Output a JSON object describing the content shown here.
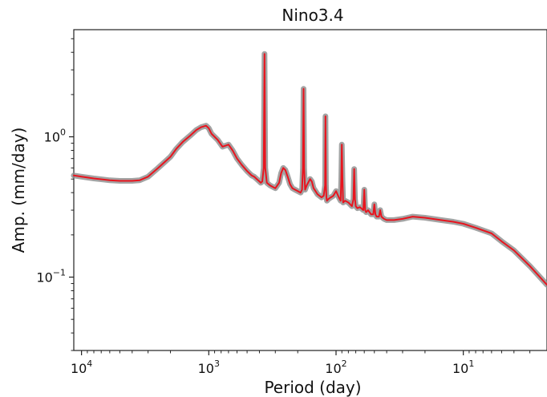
{
  "chart_data": {
    "type": "line",
    "title": "Nino3.4",
    "xlabel": "Period (day)",
    "ylabel": "Amp. (mm/day)",
    "x_scale": "log",
    "y_scale": "log",
    "x_reversed": true,
    "xlim": [
      11500,
      2.2
    ],
    "ylim": [
      0.03,
      5.8
    ],
    "grid": false,
    "legend": "none",
    "x_ticks": [
      {
        "value": 10000,
        "base": "10",
        "exp": "4"
      },
      {
        "value": 1000,
        "base": "10",
        "exp": "3"
      },
      {
        "value": 100,
        "base": "10",
        "exp": "2"
      },
      {
        "value": 10,
        "base": "10",
        "exp": "1"
      }
    ],
    "y_ticks": [
      {
        "value": 1.0,
        "base": "10",
        "exp": "0"
      },
      {
        "value": 0.1,
        "base": "10",
        "exp": "−1"
      }
    ],
    "series": [
      {
        "color": "#e8141e",
        "band_color": "#8c8c8c",
        "x": [
          11500,
          10000,
          8000,
          6000,
          5000,
          4000,
          3500,
          3000,
          2500,
          2000,
          1800,
          1600,
          1400,
          1250,
          1150,
          1050,
          1000,
          950,
          900,
          850,
          780,
          700,
          650,
          600,
          550,
          500,
          480,
          460,
          440,
          420,
          400,
          390,
          380,
          370,
          365,
          360,
          350,
          330,
          300,
          280,
          270,
          260,
          250,
          240,
          230,
          220,
          210,
          200,
          190,
          185,
          182,
          180,
          178,
          175,
          170,
          160,
          155,
          150,
          145,
          140,
          135,
          130,
          125,
          122,
          121,
          120,
          119,
          118,
          115,
          110,
          105,
          100,
          95,
          92,
          91,
          90,
          89,
          88,
          85,
          80,
          75,
          73,
          72,
          71,
          70,
          68,
          65,
          61,
          60,
          59,
          58,
          56,
          53,
          51,
          50,
          49,
          48,
          46,
          45,
          44,
          43,
          42,
          40,
          35,
          30,
          25,
          20,
          15,
          12,
          10,
          8,
          6,
          5,
          4,
          3,
          2.5,
          2.2
        ],
        "values": [
          0.53,
          0.52,
          0.505,
          0.49,
          0.485,
          0.485,
          0.49,
          0.52,
          0.6,
          0.72,
          0.82,
          0.92,
          1.02,
          1.12,
          1.17,
          1.2,
          1.15,
          1.05,
          1.0,
          0.95,
          0.85,
          0.88,
          0.8,
          0.7,
          0.63,
          0.57,
          0.55,
          0.53,
          0.52,
          0.5,
          0.48,
          0.47,
          0.48,
          0.6,
          3.9,
          0.6,
          0.47,
          0.45,
          0.43,
          0.47,
          0.55,
          0.6,
          0.58,
          0.52,
          0.46,
          0.43,
          0.42,
          0.41,
          0.4,
          0.42,
          0.6,
          2.2,
          0.6,
          0.42,
          0.45,
          0.5,
          0.48,
          0.43,
          0.41,
          0.39,
          0.38,
          0.37,
          0.38,
          0.45,
          1.4,
          0.45,
          0.37,
          0.35,
          0.36,
          0.37,
          0.38,
          0.41,
          0.37,
          0.35,
          0.5,
          0.88,
          0.5,
          0.34,
          0.35,
          0.34,
          0.32,
          0.36,
          0.59,
          0.36,
          0.32,
          0.31,
          0.315,
          0.3,
          0.42,
          0.3,
          0.29,
          0.3,
          0.28,
          0.28,
          0.33,
          0.28,
          0.27,
          0.27,
          0.3,
          0.27,
          0.265,
          0.26,
          0.255,
          0.255,
          0.26,
          0.27,
          0.265,
          0.255,
          0.248,
          0.24,
          0.225,
          0.205,
          0.18,
          0.155,
          0.12,
          0.1,
          0.088
        ]
      }
    ]
  }
}
